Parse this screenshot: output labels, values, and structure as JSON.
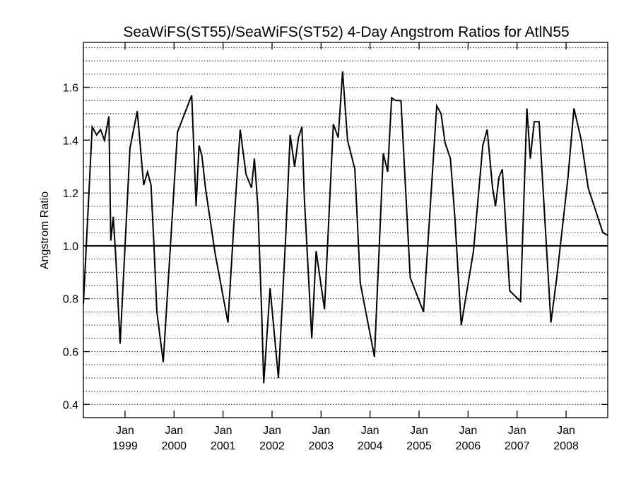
{
  "chart_data": {
    "type": "line",
    "title": "SeaWiFS(ST55)/SeaWiFS(ST52) 4-Day Angstrom Ratios for AtlN55",
    "xlabel": "",
    "ylabel": "Angstrom Ratio",
    "ylim": [
      0.35,
      1.77
    ],
    "yticks": [
      "0.4",
      "0.6",
      "0.8",
      "1.0",
      "1.2",
      "1.4",
      "1.6"
    ],
    "ytick_values": [
      0.4,
      0.6,
      0.8,
      1.0,
      1.2,
      1.4,
      1.6
    ],
    "xlim": [
      1998.15,
      2008.85
    ],
    "xticks": [
      {
        "month": "Jan",
        "year": "1999",
        "value": 1999.0
      },
      {
        "month": "Jan",
        "year": "2000",
        "value": 2000.0
      },
      {
        "month": "Jan",
        "year": "2001",
        "value": 2001.0
      },
      {
        "month": "Jan",
        "year": "2002",
        "value": 2002.0
      },
      {
        "month": "Jan",
        "year": "2003",
        "value": 2003.0
      },
      {
        "month": "Jan",
        "year": "2004",
        "value": 2004.0
      },
      {
        "month": "Jan",
        "year": "2005",
        "value": 2005.0
      },
      {
        "month": "Jan",
        "year": "2006",
        "value": 2006.0
      },
      {
        "month": "Jan",
        "year": "2007",
        "value": 2007.0
      },
      {
        "month": "Jan",
        "year": "2008",
        "value": 2008.0
      }
    ],
    "reference_line": 1.0,
    "grid": "dotted horizontal",
    "grid_step": 0.05,
    "series": [
      {
        "x": [
          1998.15,
          1998.33,
          1998.42,
          1998.5,
          1998.58,
          1998.67,
          1998.71,
          1998.76,
          1998.81,
          1998.9,
          1999.1,
          1999.25,
          1999.38,
          1999.46,
          1999.53,
          1999.59,
          1999.65,
          1999.78,
          2000.07,
          2000.36,
          2000.45,
          2000.51,
          2000.57,
          2000.64,
          2000.84,
          2001.1,
          2001.22,
          2001.35,
          2001.47,
          2001.58,
          2001.64,
          2001.71,
          2001.79,
          2001.83,
          2001.96,
          2002.13,
          2002.28,
          2002.37,
          2002.46,
          2002.54,
          2002.61,
          2002.66,
          2002.81,
          2002.9,
          2003.07,
          2003.25,
          2003.35,
          2003.44,
          2003.54,
          2003.69,
          2003.8,
          2004.09,
          2004.27,
          2004.36,
          2004.44,
          2004.52,
          2004.63,
          2004.82,
          2005.09,
          2005.36,
          2005.45,
          2005.53,
          2005.64,
          2005.73,
          2005.86,
          2006.11,
          2006.3,
          2006.39,
          2006.5,
          2006.56,
          2006.63,
          2006.7,
          2006.85,
          2007.07,
          2007.2,
          2007.27,
          2007.35,
          2007.45,
          2007.69,
          2007.81,
          2008.04,
          2008.16,
          2008.31,
          2008.45,
          2008.75,
          2008.85
        ],
        "values": [
          0.78,
          1.45,
          1.42,
          1.44,
          1.4,
          1.49,
          1.02,
          1.11,
          0.96,
          0.63,
          1.37,
          1.51,
          1.23,
          1.28,
          1.23,
          1.0,
          0.75,
          0.56,
          1.43,
          1.57,
          1.15,
          1.38,
          1.34,
          1.22,
          0.97,
          0.71,
          1.08,
          1.44,
          1.27,
          1.22,
          1.33,
          1.15,
          0.74,
          0.48,
          0.84,
          0.5,
          1.04,
          1.42,
          1.3,
          1.41,
          1.45,
          1.18,
          0.65,
          0.98,
          0.76,
          1.46,
          1.41,
          1.66,
          1.4,
          1.29,
          0.86,
          0.58,
          1.35,
          1.28,
          1.56,
          1.55,
          1.55,
          0.88,
          0.75,
          1.53,
          1.5,
          1.39,
          1.33,
          1.11,
          0.7,
          0.98,
          1.38,
          1.44,
          1.22,
          1.15,
          1.26,
          1.29,
          0.83,
          0.79,
          1.52,
          1.33,
          1.47,
          1.47,
          0.71,
          0.88,
          1.26,
          1.52,
          1.4,
          1.22,
          1.05,
          1.04
        ]
      }
    ]
  }
}
